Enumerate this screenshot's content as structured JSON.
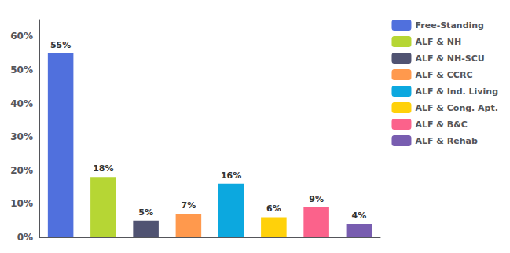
{
  "chart_data": {
    "type": "bar",
    "categories": [
      "Free-Standing",
      "ALF & NH",
      "ALF & NH-SCU",
      "ALF & CCRC",
      "ALF & Ind. Living",
      "ALF & Cong. Apt.",
      "ALF & B&C",
      "ALF & Rehab"
    ],
    "values": [
      55,
      18,
      5,
      7,
      16,
      6,
      9,
      4
    ],
    "value_labels": [
      "55%",
      "18%",
      "5%",
      "7%",
      "16%",
      "6%",
      "9%",
      "4%"
    ],
    "ylim": [
      0,
      65
    ],
    "yticks": [
      {
        "value": 0,
        "label": "0%"
      },
      {
        "value": 10,
        "label": "10%"
      },
      {
        "value": 20,
        "label": "20%"
      },
      {
        "value": 30,
        "label": "30%"
      },
      {
        "value": 40,
        "label": "40%"
      },
      {
        "value": 50,
        "label": "50%"
      },
      {
        "value": 60,
        "label": "60%"
      }
    ],
    "tick_labels": "y",
    "data_labels": true,
    "grid": false,
    "legend": "right"
  }
}
